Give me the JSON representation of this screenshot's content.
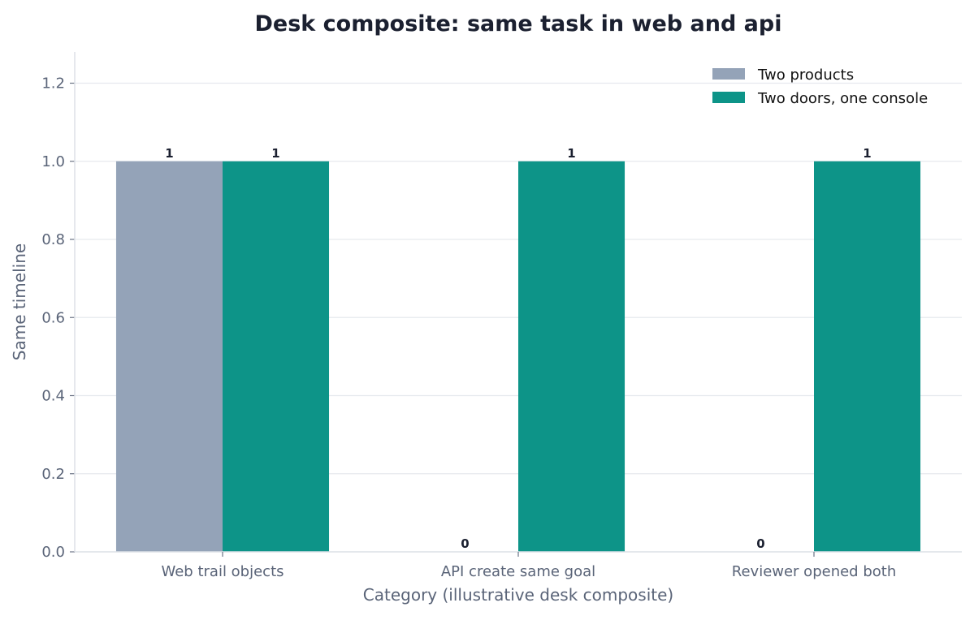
{
  "chart_data": {
    "type": "bar",
    "title": "Desk composite: same task in web and api",
    "xlabel": "Category (illustrative desk composite)",
    "ylabel": "Same timeline",
    "categories": [
      "Web trail objects",
      "API create same goal",
      "Reviewer opened both"
    ],
    "series": [
      {
        "name": "Two products",
        "values": [
          1,
          0,
          0
        ],
        "color": "#94a3b8"
      },
      {
        "name": "Two doors, one console",
        "values": [
          1,
          1,
          1
        ],
        "color": "#0d9488"
      }
    ],
    "ylim": [
      0,
      1.28
    ],
    "yticks": [
      0.0,
      0.2,
      0.4,
      0.6,
      0.8,
      1.0,
      1.2
    ],
    "ytick_labels": [
      "0.0",
      "0.2",
      "0.4",
      "0.6",
      "0.8",
      "1.0",
      "1.2"
    ],
    "grid": true,
    "legend_position": "top-right",
    "data_labels": [
      [
        "1",
        "0",
        "0"
      ],
      [
        "1",
        "1",
        "1"
      ]
    ]
  }
}
